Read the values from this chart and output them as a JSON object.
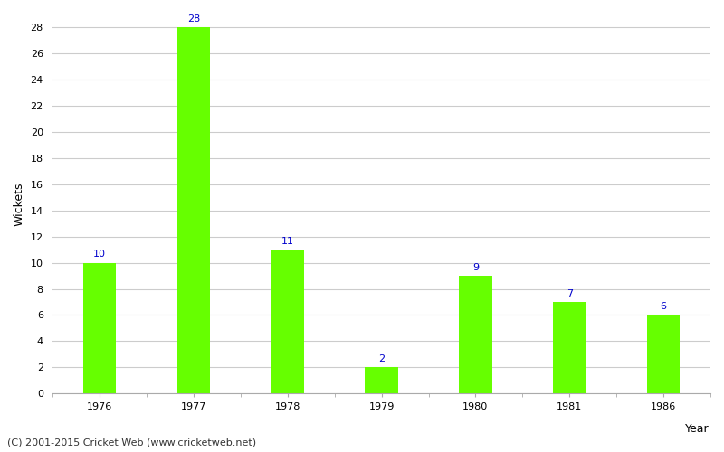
{
  "categories": [
    "1976",
    "1977",
    "1978",
    "1979",
    "1980",
    "1981",
    "1986"
  ],
  "values": [
    10,
    28,
    11,
    2,
    9,
    7,
    6
  ],
  "bar_color": "#66ff00",
  "bar_edge_color": "#66ff00",
  "xlabel": "Year",
  "ylabel": "Wickets",
  "ylim": [
    0,
    29
  ],
  "yticks": [
    0,
    2,
    4,
    6,
    8,
    10,
    12,
    14,
    16,
    18,
    20,
    22,
    24,
    26,
    28
  ],
  "label_color": "#0000cc",
  "label_fontsize": 8,
  "axis_label_fontsize": 9,
  "tick_fontsize": 8,
  "grid_color": "#cccccc",
  "background_color": "#ffffff",
  "footer_text": "(C) 2001-2015 Cricket Web (www.cricketweb.net)",
  "footer_fontsize": 8,
  "footer_color": "#333333",
  "bar_width": 0.35
}
